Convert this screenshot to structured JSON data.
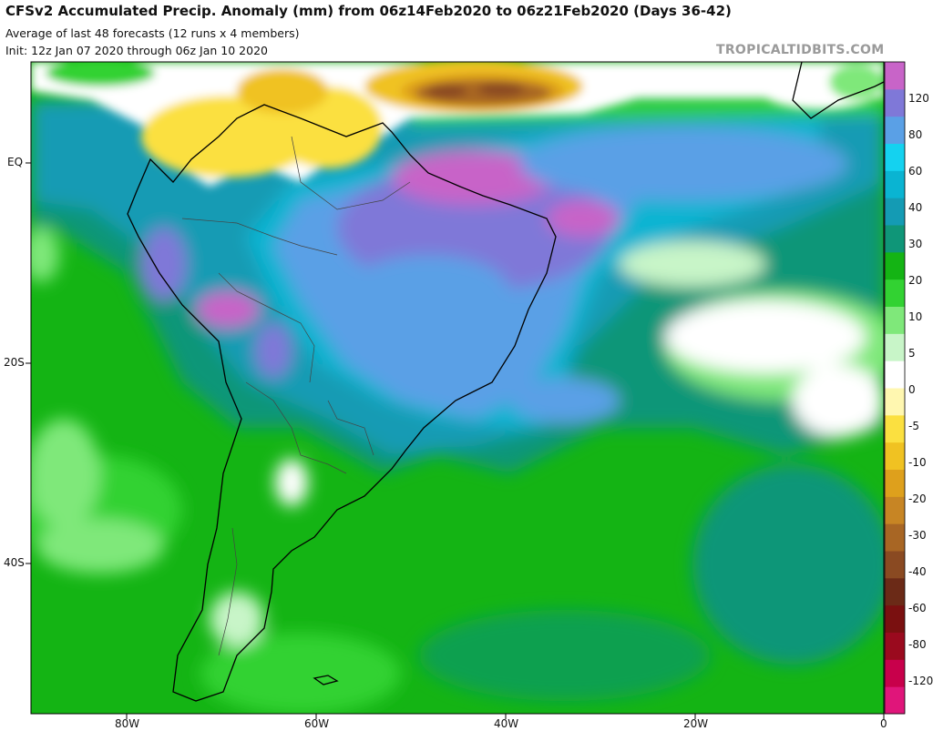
{
  "header": {
    "title": "CFSv2 Accumulated Precip. Anomaly (mm) from 06z14Feb2020 to 06z21Feb2020 (Days 36-42)",
    "subtitle1": "Average of last 48 forecasts (12 runs x 4 members)",
    "subtitle2": "Init: 12z Jan 07 2020 through 06z Jan 10 2020",
    "credit": "TROPICALTIDBITS.COM"
  },
  "axes": {
    "lat_labels": [
      "EQ",
      "20S",
      "40S"
    ],
    "lon_labels": [
      "80W",
      "60W",
      "40W",
      "20W",
      "0"
    ]
  },
  "colorbar": {
    "labels": [
      "120",
      "80",
      "60",
      "40",
      "30",
      "20",
      "10",
      "5",
      "0",
      "-5",
      "-10",
      "-20",
      "-30",
      "-40",
      "-60",
      "-80",
      "-120"
    ],
    "colors": [
      "#e0157a",
      "#c8004b",
      "#9a0a1e",
      "#7a1010",
      "#6b2a17",
      "#8a4a22",
      "#a86624",
      "#c78524",
      "#dea01c",
      "#f0c222",
      "#fbe040",
      "#fff7b0",
      "#ffffff",
      "#c8f5c8",
      "#7fe87a",
      "#32d232",
      "#14b414",
      "#0f9678",
      "#149bb4",
      "#0ab4d2",
      "#14d2f0",
      "#5aa0e6",
      "#7f78d8",
      "#c864c8"
    ]
  }
}
